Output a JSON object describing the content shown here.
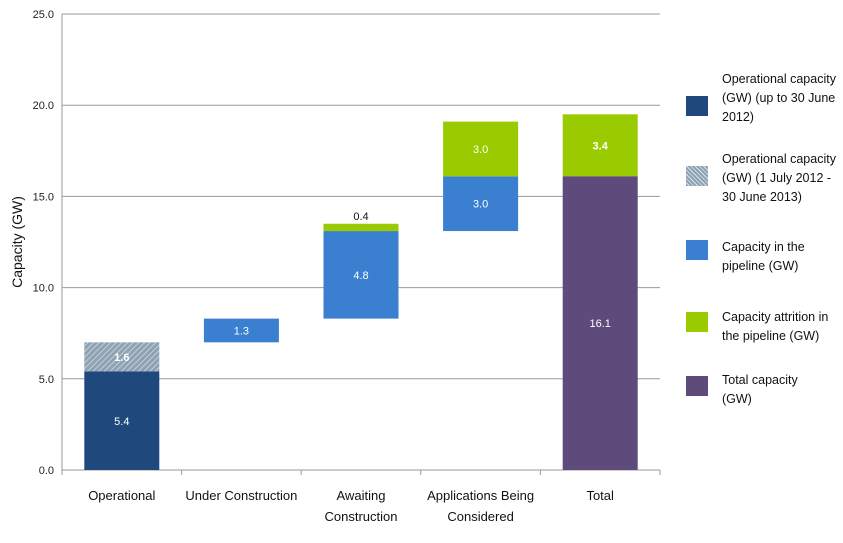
{
  "chart_data": {
    "type": "bar",
    "subtype": "stacked-waterfall",
    "ylabel": "Capacity (GW)",
    "ylim": [
      0,
      25
    ],
    "yticks": [
      "0.0",
      "5.0",
      "10.0",
      "15.0",
      "20.0",
      "25.0"
    ],
    "grid": true,
    "legend_position": "right",
    "categories": [
      "Operational",
      "Under Construction",
      "Awaiting Construction",
      "Applications Being Considered",
      "Total"
    ],
    "category_lines": [
      [
        "Operational"
      ],
      [
        "Under Construction"
      ],
      [
        "Awaiting",
        "Construction"
      ],
      [
        "Applications Being",
        "Considered"
      ],
      [
        "Total"
      ]
    ],
    "series": [
      {
        "name": "Operational capacity (GW) (up to 30 June 2012)",
        "color": "#1f497d",
        "pattern": false,
        "segments": [
          {
            "category": 0,
            "base": 0,
            "value": 5.4,
            "label": "5.4"
          }
        ]
      },
      {
        "name": "Operational capacity (GW)  (1 July 2012 - 30 June 2013)",
        "color": "#8fa2b3",
        "pattern": true,
        "segments": [
          {
            "category": 0,
            "base": 5.4,
            "value": 1.6,
            "label": "1.6"
          }
        ]
      },
      {
        "name": "Capacity in the pipeline  (GW)",
        "color": "#3a7fd0",
        "pattern": false,
        "segments": [
          {
            "category": 1,
            "base": 7.0,
            "value": 1.3,
            "label": "1.3"
          },
          {
            "category": 2,
            "base": 8.3,
            "value": 4.8,
            "label": "4.8"
          },
          {
            "category": 3,
            "base": 13.1,
            "value": 3.0,
            "label": "3.0"
          }
        ]
      },
      {
        "name": "Capacity attrition in the pipeline (GW)",
        "color": "#9acb00",
        "pattern": false,
        "segments": [
          {
            "category": 2,
            "base": 13.1,
            "value": 0.4,
            "label": "0.4"
          },
          {
            "category": 3,
            "base": 16.1,
            "value": 3.0,
            "label": "3.0"
          },
          {
            "category": 4,
            "base": 16.1,
            "value": 3.4,
            "label": "3.4"
          }
        ]
      },
      {
        "name": "Total capacity (GW)",
        "color": "#5e4a7b",
        "pattern": false,
        "segments": [
          {
            "category": 4,
            "base": 0,
            "value": 16.1,
            "label": "16.1"
          }
        ]
      }
    ]
  },
  "legend": {
    "items": [
      {
        "lines": [
          "Operational capacity",
          "(GW) (up to 30 June",
          "2012)"
        ]
      },
      {
        "lines": [
          "Operational capacity",
          "(GW)  (1 July 2012 -",
          "30 June 2013)"
        ]
      },
      {
        "lines": [
          "Capacity in the",
          "pipeline  (GW)"
        ]
      },
      {
        "lines": [
          "Capacity attrition in",
          "the pipeline (GW)"
        ]
      },
      {
        "lines": [
          "Total capacity",
          "(GW)"
        ]
      }
    ]
  }
}
